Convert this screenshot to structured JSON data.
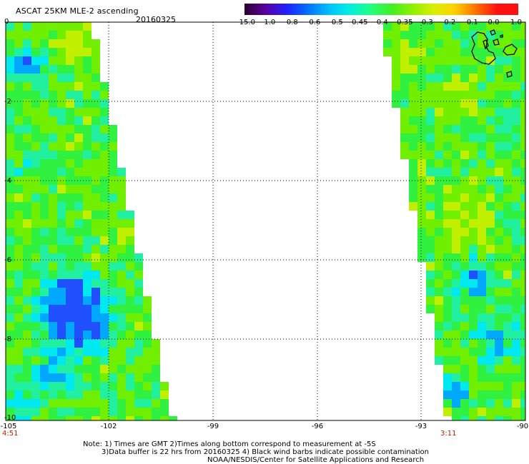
{
  "header": {
    "title": "ASCAT 25KM MLE-2 ascending",
    "date": "20160325"
  },
  "colorbar": {
    "labels": [
      "-15.0",
      "-1.0",
      "-0.8",
      "-0.6",
      "-0.5",
      "-0.45",
      "-0.4",
      "-0.35",
      "-0.3",
      "-0.2",
      "-0.1",
      "0.0",
      "1.0"
    ],
    "colors": [
      "#2a0030",
      "#5a00a0",
      "#2020ff",
      "#0070ff",
      "#00c0ff",
      "#00f0e0",
      "#20ff80",
      "#40f020",
      "#90f000",
      "#d8f000",
      "#ffd000",
      "#ff7000",
      "#ff1010"
    ]
  },
  "map": {
    "lat_ticks": [
      "0",
      "-2",
      "-4",
      "-6",
      "-8",
      "-10"
    ],
    "lon_ticks": [
      "-105",
      "-102",
      "-99",
      "-96",
      "-93",
      "-90"
    ],
    "times": {
      "left": "4:51",
      "right": "3:11"
    }
  },
  "footer": {
    "line1": "Note: 1) Times are GMT 2)Times along bottom correspond to measurement at -5S",
    "line2": "3)Data buffer is 22 hrs from 20160325 4) Black wind barbs indicate possible contamination",
    "line3": "NOAA/NESDIS/Center for Satellite Applications and Research"
  }
}
